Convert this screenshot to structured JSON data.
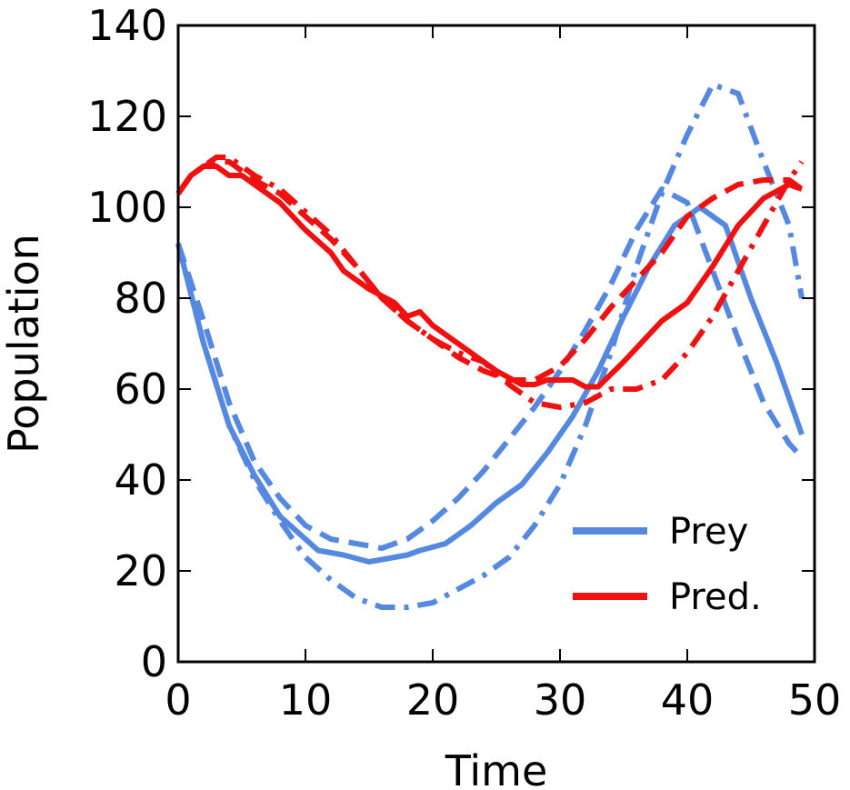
{
  "chart_data": {
    "type": "line",
    "xlabel": "Time",
    "ylabel": "Population",
    "xlim": [
      0,
      50
    ],
    "ylim": [
      0,
      140
    ],
    "xticks": [
      0,
      10,
      20,
      30,
      40,
      50
    ],
    "yticks": [
      0,
      20,
      40,
      60,
      80,
      100,
      120,
      140
    ],
    "grid": false,
    "legend_position": "bottom-right",
    "legend": [
      {
        "label": "Prey",
        "color": "#5588e0"
      },
      {
        "label": "Pred.",
        "color": "#f01010"
      }
    ],
    "series": [
      {
        "group": "Prey",
        "style": "solid",
        "color": "#5588e0",
        "x": [
          0,
          2,
          4,
          6,
          8,
          10,
          11,
          13,
          15,
          16,
          18,
          19,
          21,
          23,
          25,
          27,
          29,
          31,
          33,
          35,
          37,
          39,
          41,
          43,
          45,
          47,
          49
        ],
        "y": [
          92,
          70,
          52,
          41,
          32,
          27,
          24.5,
          23.5,
          22,
          22.5,
          23.5,
          24.5,
          26,
          30,
          35,
          39,
          46,
          54,
          64,
          76,
          87,
          96,
          100,
          96,
          80,
          66,
          50
        ]
      },
      {
        "group": "Prey",
        "style": "dashed",
        "color": "#5588e0",
        "x": [
          0,
          2,
          4,
          6,
          8,
          10,
          12,
          14,
          16,
          18,
          20,
          22,
          24,
          26,
          28,
          30,
          32,
          34,
          36,
          38,
          40,
          42,
          44,
          46,
          48,
          49
        ],
        "y": [
          92,
          75,
          57,
          44,
          36,
          30,
          27,
          26,
          25,
          27,
          31,
          36,
          42,
          49,
          56,
          64,
          73,
          83,
          95,
          104,
          101,
          86,
          71,
          57,
          48,
          45
        ]
      },
      {
        "group": "Prey",
        "style": "dashdot",
        "color": "#5588e0",
        "x": [
          0,
          2,
          4,
          6,
          8,
          10,
          12,
          14,
          16,
          18,
          20,
          22,
          24,
          26,
          28,
          30,
          32,
          34,
          36,
          38,
          40,
          42,
          44,
          46,
          48,
          49
        ],
        "y": [
          92,
          70,
          52,
          40,
          31,
          23,
          18,
          14,
          12,
          12,
          13,
          16,
          19,
          23,
          30,
          39,
          52,
          68,
          87,
          103,
          116,
          127,
          125,
          110,
          96,
          80
        ]
      },
      {
        "group": "Pred.",
        "style": "solid",
        "color": "#f01010",
        "x": [
          0,
          1,
          2,
          3,
          4,
          5,
          6,
          8,
          10,
          12,
          13,
          15,
          17,
          18,
          19,
          20,
          21,
          23,
          25,
          27,
          28,
          29,
          31,
          32,
          33,
          35,
          37,
          38,
          39,
          40,
          42,
          44,
          46,
          48,
          49
        ],
        "y": [
          103,
          107,
          109,
          109,
          107,
          107,
          105,
          101,
          95,
          90,
          86,
          82,
          79,
          76,
          77,
          74,
          72,
          68,
          64,
          61,
          61,
          62,
          62,
          60.5,
          60.5,
          66,
          72,
          75,
          77,
          79,
          87,
          96,
          102,
          105,
          104
        ]
      },
      {
        "group": "Pred.",
        "style": "dashed",
        "color": "#f01010",
        "x": [
          0,
          1,
          2,
          3,
          4,
          5,
          6,
          8,
          10,
          12,
          14,
          16,
          18,
          20,
          22,
          24,
          26,
          28,
          30,
          32,
          34,
          36,
          38,
          40,
          42,
          44,
          46,
          48,
          49
        ],
        "y": [
          103,
          107,
          109,
          110,
          110,
          108,
          106,
          103,
          98,
          93,
          87,
          80,
          75,
          71,
          67,
          64,
          62,
          62,
          65,
          71,
          78,
          84,
          90,
          98,
          102,
          105,
          106,
          106,
          104
        ]
      },
      {
        "group": "Pred.",
        "style": "dashdot",
        "color": "#f01010",
        "x": [
          0,
          1,
          2,
          3,
          4,
          5,
          6,
          8,
          10,
          12,
          14,
          16,
          18,
          20,
          22,
          24,
          26,
          28,
          30,
          32,
          34,
          36,
          38,
          40,
          42,
          44,
          46,
          48,
          49
        ],
        "y": [
          103,
          107,
          109,
          111,
          111,
          109,
          107,
          104,
          99,
          94,
          87,
          80,
          75,
          71,
          68,
          66,
          61,
          57,
          56,
          57,
          60,
          60,
          62,
          68,
          76,
          86,
          96,
          106,
          110
        ]
      }
    ]
  }
}
